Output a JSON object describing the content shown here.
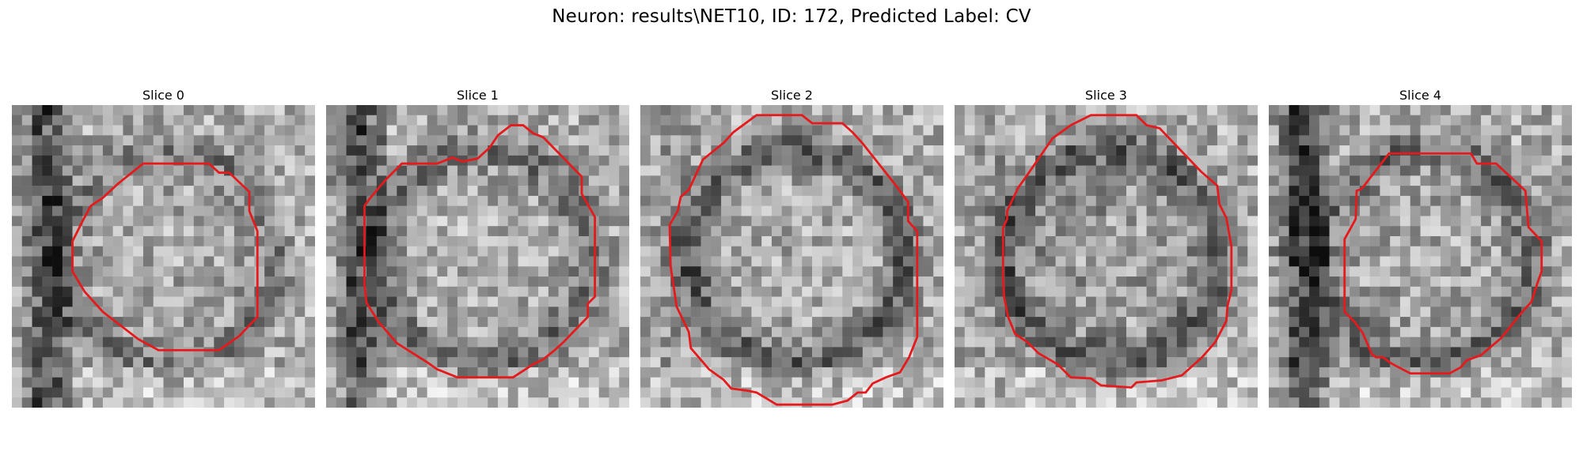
{
  "figure": {
    "title": "Neuron: results\\NET10, ID: 172, Predicted Label: CV"
  },
  "panels": [
    {
      "title": "Slice 0",
      "contour_color": "#e41a1c",
      "seed": 11,
      "ring": 0.45,
      "center_dark": 0.1,
      "left_dark": 0.55
    },
    {
      "title": "Slice 1",
      "contour_color": "#e41a1c",
      "seed": 23,
      "ring": 0.55,
      "center_dark": 0.0,
      "left_dark": 0.45
    },
    {
      "title": "Slice 2",
      "contour_color": "#e41a1c",
      "seed": 37,
      "ring": 0.7,
      "center_dark": 0.05,
      "left_dark": 0.1
    },
    {
      "title": "Slice 3",
      "contour_color": "#e41a1c",
      "seed": 51,
      "ring": 0.75,
      "center_dark": 0.25,
      "left_dark": 0.1
    },
    {
      "title": "Slice 4",
      "contour_color": "#e41a1c",
      "seed": 67,
      "ring": 0.6,
      "center_dark": 0.1,
      "left_dark": 0.6
    }
  ]
}
